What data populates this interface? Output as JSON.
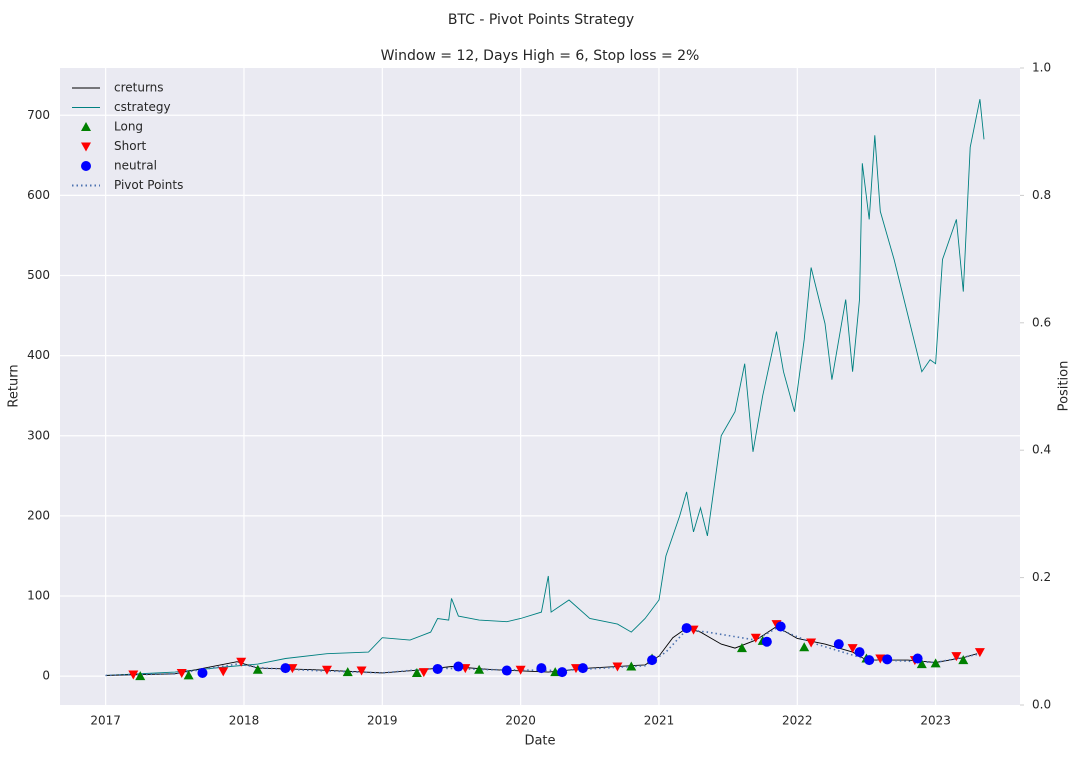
{
  "chart_data": {
    "type": "line",
    "title": "BTC - Pivot Points Strategy",
    "subtitle": "Window = 12, Days High = 6, Stop loss = 2%",
    "x_label": "Date",
    "y_label": "Return",
    "y2_label": "Position",
    "xlim": [
      2016.67,
      2023.61
    ],
    "xticks": [
      2017,
      2018,
      2019,
      2020,
      2021,
      2022,
      2023
    ],
    "ylim": [
      -36,
      759
    ],
    "yticks": [
      0,
      100,
      200,
      300,
      400,
      500,
      600,
      700
    ],
    "y2lim": [
      0,
      1
    ],
    "y2ticks": [
      {
        "value": 0,
        "label": "0.0"
      },
      {
        "value": 0.2,
        "label": "0.2"
      },
      {
        "value": 0.4,
        "label": "0.4"
      },
      {
        "value": 0.6,
        "label": "0.6"
      },
      {
        "value": 0.8,
        "label": "0.8"
      },
      {
        "value": 1,
        "label": "1.0"
      }
    ],
    "grid": true,
    "legend": "upper left",
    "series": [
      {
        "name": "creturns",
        "color": "#000000",
        "style": "line",
        "x": [
          2017.0,
          2017.5,
          2017.95,
          2018.1,
          2018.5,
          2019.0,
          2019.3,
          2019.5,
          2019.8,
          2020.2,
          2020.5,
          2020.9,
          2021.0,
          2021.1,
          2021.2,
          2021.3,
          2021.45,
          2021.55,
          2021.7,
          2021.85,
          2022.0,
          2022.2,
          2022.4,
          2022.5,
          2022.8,
          2023.0,
          2023.2,
          2023.3
        ],
        "values": [
          1,
          3,
          18,
          10,
          8,
          4,
          8,
          12,
          8,
          5,
          10,
          14,
          25,
          48,
          60,
          55,
          40,
          35,
          45,
          62,
          47,
          40,
          30,
          20,
          20,
          17,
          23,
          28
        ]
      },
      {
        "name": "cstrategy",
        "color": "#008080",
        "style": "line",
        "x": [
          2017.0,
          2017.5,
          2017.9,
          2018.1,
          2018.3,
          2018.6,
          2018.9,
          2019.0,
          2019.2,
          2019.35,
          2019.4,
          2019.48,
          2019.5,
          2019.55,
          2019.7,
          2019.9,
          2020.0,
          2020.15,
          2020.2,
          2020.22,
          2020.35,
          2020.5,
          2020.7,
          2020.8,
          2020.9,
          2021.0,
          2021.05,
          2021.15,
          2021.2,
          2021.25,
          2021.3,
          2021.35,
          2021.45,
          2021.55,
          2021.62,
          2021.68,
          2021.75,
          2021.85,
          2021.9,
          2021.98,
          2022.05,
          2022.1,
          2022.2,
          2022.25,
          2022.35,
          2022.4,
          2022.45,
          2022.47,
          2022.52,
          2022.56,
          2022.6,
          2022.7,
          2022.8,
          2022.9,
          2022.96,
          2023.0,
          2023.05,
          2023.15,
          2023.2,
          2023.25,
          2023.32,
          2023.35
        ],
        "values": [
          1,
          5,
          12,
          15,
          22,
          28,
          30,
          48,
          45,
          55,
          72,
          70,
          97,
          75,
          70,
          68,
          72,
          80,
          125,
          80,
          95,
          72,
          65,
          55,
          72,
          95,
          150,
          200,
          230,
          180,
          210,
          175,
          300,
          330,
          390,
          280,
          350,
          430,
          380,
          330,
          420,
          510,
          440,
          370,
          470,
          380,
          470,
          640,
          570,
          675,
          580,
          520,
          450,
          380,
          395,
          390,
          520,
          570,
          480,
          660,
          720,
          670
        ]
      },
      {
        "name": "Long",
        "color": "#008000",
        "style": "marker",
        "marker": "^",
        "x": [
          2017.25,
          2017.6,
          2018.1,
          2018.75,
          2019.25,
          2019.7,
          2020.25,
          2020.8,
          2020.95,
          2021.6,
          2021.75,
          2022.05,
          2022.5,
          2022.9,
          2023.0,
          2023.2
        ],
        "values": [
          0,
          1,
          8,
          5,
          4,
          8,
          5,
          12,
          22,
          35,
          44,
          36,
          22,
          15,
          16,
          20
        ]
      },
      {
        "name": "Short",
        "color": "#ff0000",
        "style": "marker",
        "marker": "v",
        "x": [
          2017.2,
          2017.55,
          2017.85,
          2017.98,
          2018.35,
          2018.6,
          2018.85,
          2019.3,
          2019.6,
          2020.0,
          2020.4,
          2020.7,
          2021.25,
          2021.7,
          2021.85,
          2022.1,
          2022.4,
          2022.6,
          2022.85,
          2023.15,
          2023.32
        ],
        "values": [
          2,
          4,
          6,
          18,
          10,
          8,
          7,
          5,
          10,
          8,
          10,
          12,
          58,
          48,
          65,
          42,
          35,
          22,
          20,
          25,
          30
        ]
      },
      {
        "name": "neutral",
        "color": "#0000ff",
        "style": "marker",
        "marker": "o",
        "x": [
          2017.7,
          2018.3,
          2019.4,
          2019.55,
          2019.9,
          2020.15,
          2020.3,
          2020.45,
          2020.95,
          2021.2,
          2021.78,
          2021.88,
          2022.3,
          2022.45,
          2022.52,
          2022.65,
          2022.87
        ],
        "values": [
          4,
          10,
          9,
          12,
          7,
          10,
          5,
          10,
          20,
          60,
          43,
          62,
          40,
          30,
          20,
          21,
          22
        ]
      },
      {
        "name": "Pivot Points",
        "color": "#4c72b0",
        "style": "dotted",
        "x": [
          2017.0,
          2017.5,
          2017.95,
          2018.15,
          2018.5,
          2019.0,
          2019.4,
          2019.8,
          2020.3,
          2020.9,
          2021.05,
          2021.2,
          2021.35,
          2021.7,
          2021.85,
          2022.1,
          2022.5,
          2023.0,
          2023.3
        ],
        "values": [
          1,
          3,
          15,
          10,
          7,
          4,
          10,
          8,
          7,
          13,
          30,
          58,
          55,
          45,
          60,
          42,
          21,
          17,
          27
        ]
      }
    ]
  }
}
